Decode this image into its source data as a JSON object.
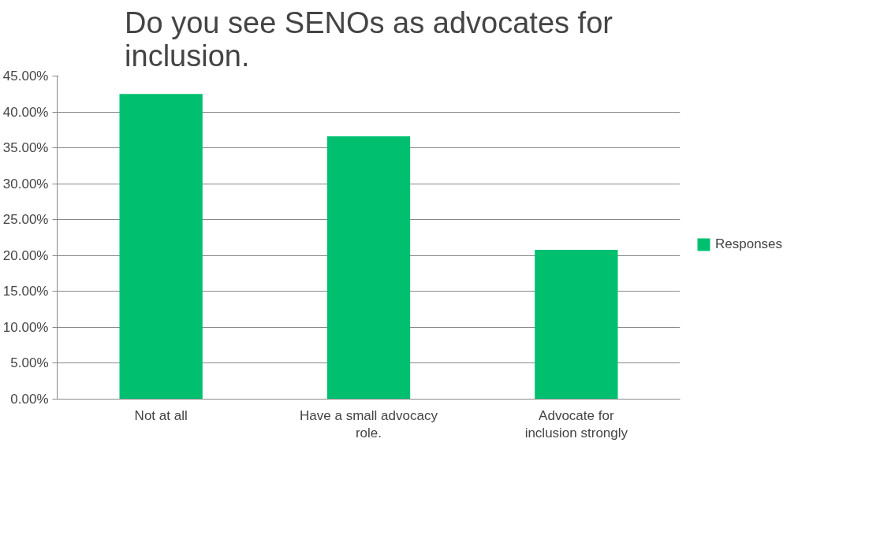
{
  "chart_data": {
    "type": "bar",
    "title": "Do you see SENOs as advocates for inclusion.",
    "categories": [
      "Not at all",
      "Have a small advocacy role.",
      "Advocate for inclusion strongly"
    ],
    "series": [
      {
        "name": "Responses",
        "color": "#00c070",
        "values": [
          42.5,
          36.6,
          20.8
        ]
      }
    ],
    "ylim": [
      0,
      45
    ],
    "yticks": [
      {
        "value": 0,
        "label": "0.00%"
      },
      {
        "value": 5,
        "label": "5.00%"
      },
      {
        "value": 10,
        "label": "10.00%"
      },
      {
        "value": 15,
        "label": "15.00%"
      },
      {
        "value": 20,
        "label": "20.00%"
      },
      {
        "value": 25,
        "label": "25.00%"
      },
      {
        "value": 30,
        "label": "30.00%"
      },
      {
        "value": 35,
        "label": "35.00%"
      },
      {
        "value": 40,
        "label": "40.00%"
      },
      {
        "value": 45,
        "label": "45.00%"
      }
    ],
    "grid": "y",
    "legend": "right"
  }
}
